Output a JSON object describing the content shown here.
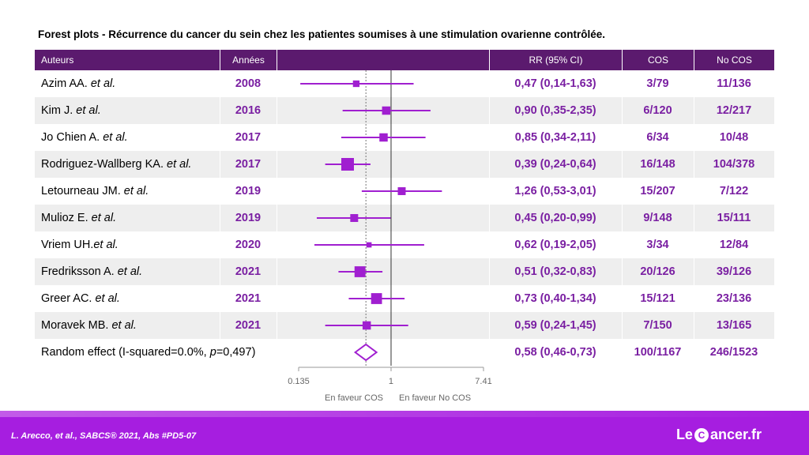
{
  "title": "Forest plots - Récurrence du cancer du sein chez les patientes soumises à une stimulation ovarienne contrôlée.",
  "headers": {
    "authors": "Auteurs",
    "years": "Années",
    "rr": "RR (95% CI)",
    "cos": "COS",
    "no_cos": "No COS"
  },
  "rows": [
    {
      "author": "Azim AA.",
      "etal": " et al.",
      "year": "2008",
      "rr_text": "0,47 (0,14-1,63)",
      "cos": "3/79",
      "no_cos": "11/136"
    },
    {
      "author": "Kim J.",
      "etal": " et al.",
      "year": "2016",
      "rr_text": "0,90 (0,35-2,35)",
      "cos": "6/120",
      "no_cos": "12/217"
    },
    {
      "author": "Jo Chien A.",
      "etal": " et al.",
      "year": "2017",
      "rr_text": "0,85 (0,34-2,11)",
      "cos": "6/34",
      "no_cos": "10/48"
    },
    {
      "author": "Rodriguez-Wallberg KA.",
      "etal": " et al.",
      "year": "2017",
      "rr_text": "0,39 (0,24-0,64)",
      "cos": "16/148",
      "no_cos": "104/378"
    },
    {
      "author": "Letourneau JM.",
      "etal": " et al.",
      "year": "2019",
      "rr_text": "1,26 (0,53-3,01)",
      "cos": "15/207",
      "no_cos": "7/122"
    },
    {
      "author": "Mulioz E.",
      "etal": " et al.",
      "year": "2019",
      "rr_text": "0,45 (0,20-0,99)",
      "cos": "9/148",
      "no_cos": "15/111"
    },
    {
      "author": "Vriem UH.",
      "etal": "et al.",
      "year": "2020",
      "rr_text": "0,62 (0,19-2,05)",
      "cos": "3/34",
      "no_cos": "12/84"
    },
    {
      "author": "Fredriksson A.",
      "etal": " et al.",
      "year": "2021",
      "rr_text": "0,51 (0,32-0,83)",
      "cos": "20/126",
      "no_cos": "39/126"
    },
    {
      "author": "Greer AC.",
      "etal": " et al.",
      "year": "2021",
      "rr_text": "0,73 (0,40-1,34)",
      "cos": "15/121",
      "no_cos": "23/136"
    },
    {
      "author": "Moravek MB.",
      "etal": " et al.",
      "year": "2021",
      "rr_text": "0,59 (0,24-1,45)",
      "cos": "7/150",
      "no_cos": "13/165"
    }
  ],
  "summary": {
    "label_prefix": "Random effect (I-squared=0.0%, ",
    "label_p": "p",
    "label_suffix": "=0,497)",
    "rr_text": "0,58 (0,46-0,73)",
    "cos": "100/1167",
    "no_cos": "246/1523"
  },
  "axis": {
    "tick_min_label": "0.135",
    "tick_one_label": "1",
    "tick_max_label": "7.41",
    "favour_left": "En faveur COS",
    "favour_right": "En faveur No COS"
  },
  "footer": {
    "citation": "L. Arecco, et al., SABCS® 2021, Abs #PD5-07",
    "logo_le": "Le",
    "logo_ribbon": "C",
    "logo_rest": "ancer.fr"
  },
  "colors": {
    "header_bg": "#5b1a6e",
    "accent": "#7a1fa2",
    "marker": "#a01fd0",
    "footer_bg": "#a61ee0"
  },
  "chart_data": {
    "type": "forest",
    "scale": "log",
    "xlim": [
      0.135,
      7.41
    ],
    "reference_line": 1,
    "pooled_estimate_line": 0.58,
    "studies": [
      {
        "label": "Azim AA. et al.",
        "year": 2008,
        "rr": 0.47,
        "lo": 0.14,
        "hi": 1.63,
        "weight": 0.3
      },
      {
        "label": "Kim J. et al.",
        "year": 2016,
        "rr": 0.9,
        "lo": 0.35,
        "hi": 2.35,
        "weight": 0.5
      },
      {
        "label": "Jo Chien A. et al.",
        "year": 2017,
        "rr": 0.85,
        "lo": 0.34,
        "hi": 2.11,
        "weight": 0.5
      },
      {
        "label": "Rodriguez-Wallberg KA. et al.",
        "year": 2017,
        "rr": 0.39,
        "lo": 0.24,
        "hi": 0.64,
        "weight": 1.0
      },
      {
        "label": "Letourneau JM. et al.",
        "year": 2019,
        "rr": 1.26,
        "lo": 0.53,
        "hi": 3.01,
        "weight": 0.45
      },
      {
        "label": "Mulioz E. et al.",
        "year": 2019,
        "rr": 0.45,
        "lo": 0.2,
        "hi": 0.99,
        "weight": 0.45
      },
      {
        "label": "Vriem UH. et al.",
        "year": 2020,
        "rr": 0.62,
        "lo": 0.19,
        "hi": 2.05,
        "weight": 0.15
      },
      {
        "label": "Fredriksson A. et al.",
        "year": 2021,
        "rr": 0.51,
        "lo": 0.32,
        "hi": 0.83,
        "weight": 0.8
      },
      {
        "label": "Greer AC. et al.",
        "year": 2021,
        "rr": 0.73,
        "lo": 0.4,
        "hi": 1.34,
        "weight": 0.8
      },
      {
        "label": "Moravek MB. et al.",
        "year": 2021,
        "rr": 0.59,
        "lo": 0.24,
        "hi": 1.45,
        "weight": 0.5
      }
    ],
    "pooled": {
      "label": "Random effect",
      "rr": 0.58,
      "lo": 0.46,
      "hi": 0.73
    }
  }
}
